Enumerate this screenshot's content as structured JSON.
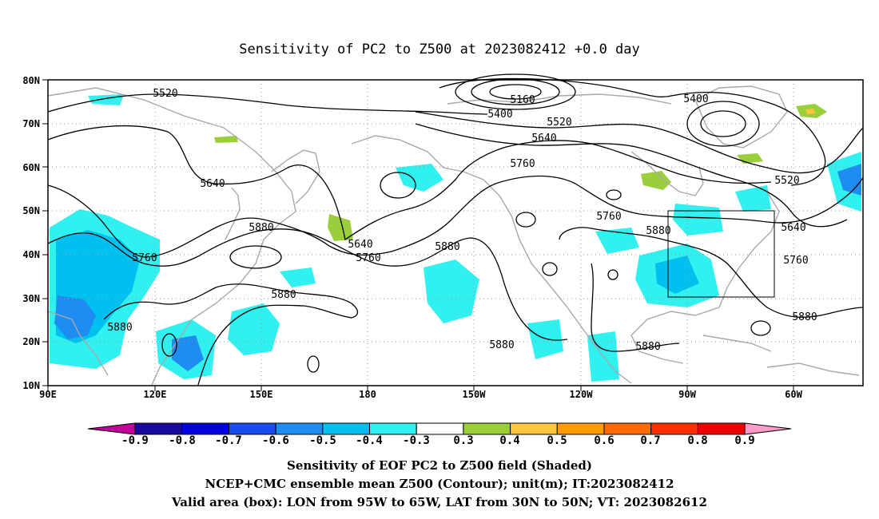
{
  "title": "Sensitivity of PC2 to Z500 at 2023082412 +0.0 day",
  "x_ticks": [
    "90E",
    "120E",
    "150E",
    "180",
    "150W",
    "120W",
    "90W",
    "60W"
  ],
  "y_ticks": [
    "80N",
    "70N",
    "60N",
    "50N",
    "40N",
    "30N",
    "20N",
    "10N"
  ],
  "contour_labels": [
    "5520",
    "5640",
    "5880",
    "5760",
    "5880",
    "5880",
    "5640",
    "5760",
    "5160",
    "5400",
    "5520",
    "5640",
    "5760",
    "5880",
    "5880",
    "5760",
    "5880",
    "5880",
    "5400",
    "5520",
    "5640",
    "5760",
    "5880"
  ],
  "colorbar": {
    "labels": [
      "-0.9",
      "-0.8",
      "-0.7",
      "-0.6",
      "-0.5",
      "-0.4",
      "-0.3",
      "0.3",
      "0.4",
      "0.5",
      "0.6",
      "0.7",
      "0.8",
      "0.9"
    ],
    "colors": [
      "#c4009c",
      "#1a0aa0",
      "#0000e0",
      "#1a4cf0",
      "#1e8cf0",
      "#00c0f0",
      "#30f0f0",
      "#ffffff",
      "#9ace3a",
      "#ffc640",
      "#ff9c00",
      "#ff6a00",
      "#ff3000",
      "#f00000",
      "#ff9cc8"
    ]
  },
  "captions": [
    "Sensitivity of EOF PC2 to Z500 field (Shaded)",
    "NCEP+CMC ensemble mean Z500 (Contour); unit(m); IT:2023082412",
    "Valid area (box): LON from 95W to 65W, LAT from 30N to 50N; VT: 2023082612"
  ]
}
